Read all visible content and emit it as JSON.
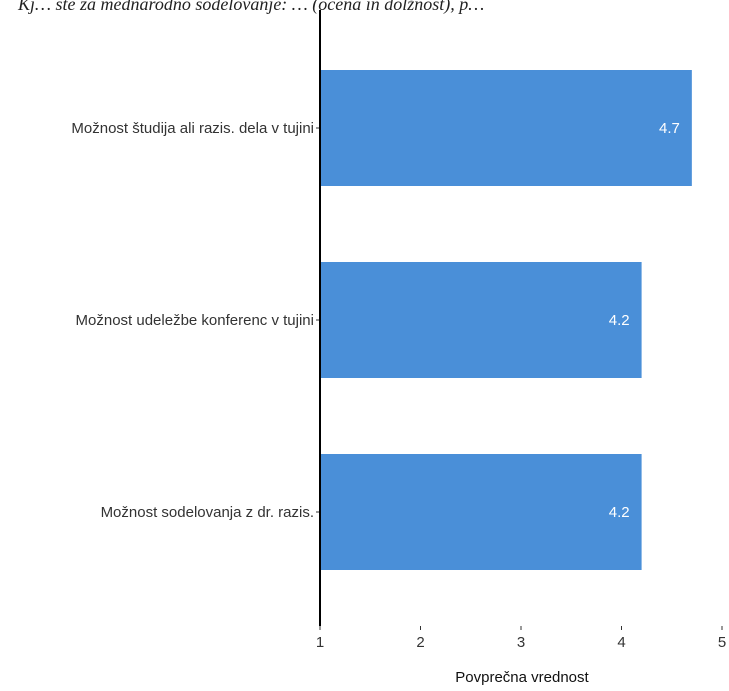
{
  "chart_data": {
    "type": "bar",
    "orientation": "horizontal",
    "title": "Kj… ste za mednarodno sodelovanje: … (ocena in dolžnost), p…",
    "xlabel": "Povprečna vrednost",
    "ylabel": "",
    "xlim": [
      1,
      5
    ],
    "xticks": [
      1,
      2,
      3,
      4,
      5
    ],
    "grid": false,
    "legend": "none",
    "bar_color": "#4a8fd8",
    "categories": [
      "Možnost študija ali razis. dela v tujini",
      "Možnost udeležbe konferenc v tujini",
      "Možnost sodelovanja z dr. razis."
    ],
    "values": [
      4.7,
      4.2,
      4.2
    ],
    "value_labels": [
      "4.7",
      "4.2",
      "4.2"
    ]
  }
}
